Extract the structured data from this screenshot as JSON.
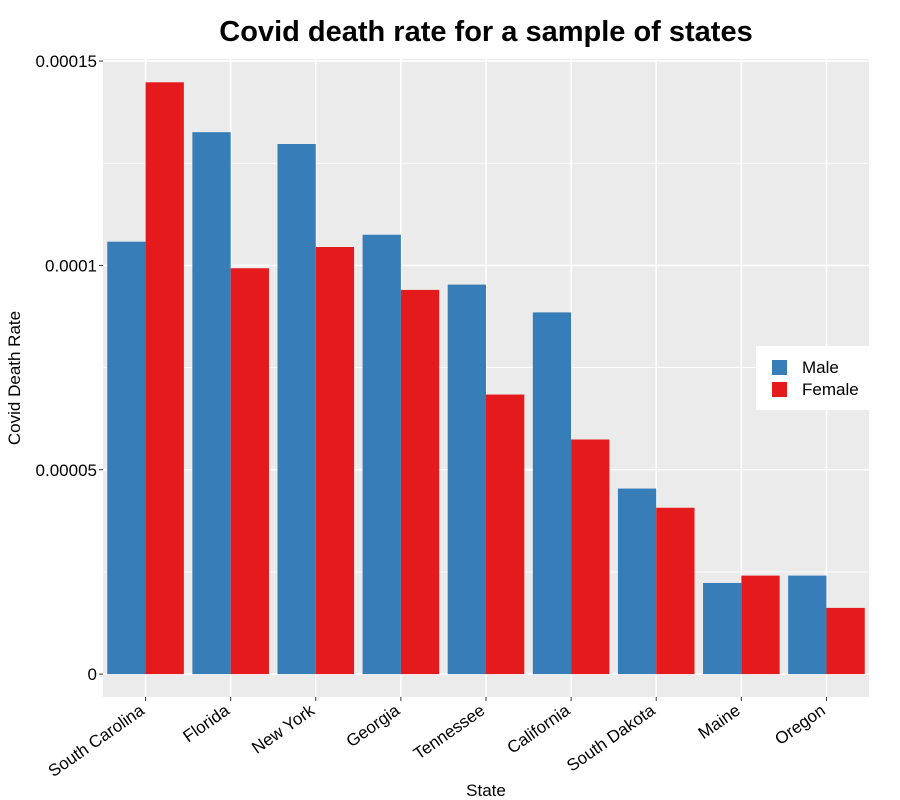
{
  "chart_data": {
    "type": "bar",
    "title": "Covid death rate for a sample of states",
    "xlabel": "State",
    "ylabel": "Covid Death Rate",
    "categories": [
      "South Carolina",
      "Florida",
      "New York",
      "Georgia",
      "Tennessee",
      "California",
      "South Dakota",
      "Maine",
      "Oregon"
    ],
    "series": [
      {
        "name": "Male",
        "color": "#377EB8",
        "values": [
          0.0001058,
          0.0001326,
          0.0001297,
          0.0001075,
          9.53e-05,
          8.85e-05,
          4.54e-05,
          2.23e-05,
          2.41e-05
        ]
      },
      {
        "name": "Female",
        "color": "#E41A1C",
        "values": [
          0.0001448,
          9.93e-05,
          0.0001045,
          9.4e-05,
          6.84e-05,
          5.74e-05,
          4.07e-05,
          2.41e-05,
          1.62e-05
        ]
      }
    ],
    "ylim": [
      -5.6e-06,
      0.0001505
    ],
    "y_ticks": [
      0,
      5e-05,
      0.0001,
      0.00015
    ],
    "y_tick_labels": [
      "0",
      "0.00005",
      "0.0001",
      "0.00015"
    ],
    "legend_position": "right",
    "grid": true,
    "panel_background": "#EBEBEB",
    "grid_color": "#FFFFFF"
  }
}
